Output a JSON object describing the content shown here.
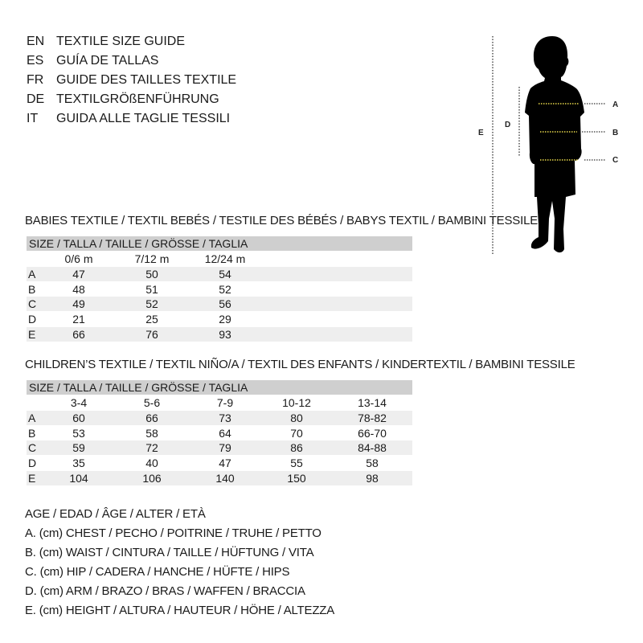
{
  "languages": [
    {
      "code": "EN",
      "text": "TEXTILE SIZE GUIDE"
    },
    {
      "code": "ES",
      "text": "GUÍA DE TALLAS"
    },
    {
      "code": "FR",
      "text": "GUIDE DES TAILLES TEXTILE"
    },
    {
      "code": "DE",
      "text": "TEXTILGRÖßENFÜHRUNG"
    },
    {
      "code": "IT",
      "text": "GUIDA ALLE TAGLIE TESSILI"
    }
  ],
  "figure": {
    "labels": {
      "E": "E",
      "D": "D",
      "A": "A",
      "B": "B",
      "C": "C"
    },
    "measure_line_color": "#e8d84a"
  },
  "babies": {
    "title": "BABIES TEXTILE / TEXTIL BEBÉS / TESTILE DES BÉBÉS / BABYS TEXTIL / BAMBINI TESSILE",
    "size_header": "SIZE / TALLA / TAILLE / GRÖSSE / TAGLIA",
    "columns": [
      "0/6 m",
      "7/12 m",
      "12/24 m"
    ],
    "rows": [
      {
        "label": "A",
        "values": [
          "47",
          "50",
          "54"
        ]
      },
      {
        "label": "B",
        "values": [
          "48",
          "51",
          "52"
        ]
      },
      {
        "label": "C",
        "values": [
          "49",
          "52",
          "56"
        ]
      },
      {
        "label": "D",
        "values": [
          "21",
          "25",
          "29"
        ]
      },
      {
        "label": "E",
        "values": [
          "66",
          "76",
          "93"
        ]
      }
    ]
  },
  "children": {
    "title": "CHILDREN’S TEXTILE / TEXTIL NIÑO/A / TEXTIL DES ENFANTS / KINDERTEXTIL / BAMBINI TESSILE",
    "size_header": "SIZE / TALLA / TAILLE / GRÖSSE / TAGLIA",
    "columns": [
      "3-4",
      "5-6",
      "7-9",
      "10-12",
      "13-14"
    ],
    "rows": [
      {
        "label": "A",
        "values": [
          "60",
          "66",
          "73",
          "80",
          "78-82"
        ]
      },
      {
        "label": "B",
        "values": [
          "53",
          "58",
          "64",
          "70",
          "66-70"
        ]
      },
      {
        "label": "C",
        "values": [
          "59",
          "72",
          "79",
          "86",
          "84-88"
        ]
      },
      {
        "label": "D",
        "values": [
          "35",
          "40",
          "47",
          "55",
          "58"
        ]
      },
      {
        "label": "E",
        "values": [
          "104",
          "106",
          "140",
          "150",
          "98"
        ]
      }
    ]
  },
  "legend": [
    "AGE / EDAD / ÂGE / ALTER / ETÀ",
    "A. (cm) CHEST / PECHO / POITRINE / TRUHE / PETTO",
    "B. (cm) WAIST / CINTURA / TAILLE / HÜFTUNG / VITA",
    "C. (cm) HIP / CADERA / HANCHE / HÜFTE / HIPS",
    "D. (cm) ARM / BRAZO / BRAS / WAFFEN / BRACCIA",
    "E. (cm) HEIGHT / ALTURA / HAUTEUR / HÖHE / ALTEZZA"
  ]
}
